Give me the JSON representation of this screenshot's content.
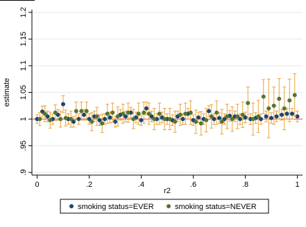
{
  "chart_data": {
    "type": "scatter",
    "xlabel": "r2",
    "ylabel": "estimate",
    "xlim": [
      -0.02,
      1.02
    ],
    "ylim": [
      0.895,
      1.205
    ],
    "x_ticks": [
      0,
      0.2,
      0.4,
      0.6,
      0.8,
      1
    ],
    "x_tick_labels": [
      "0",
      ".2",
      ".4",
      ".6",
      ".8",
      "1"
    ],
    "y_ticks": [
      0.9,
      0.95,
      1,
      1.05,
      1.1,
      1.15,
      1.2
    ],
    "y_tick_labels": [
      ".9",
      ".95",
      "1",
      "1.05",
      "1.1",
      "1.15",
      "1.2"
    ],
    "reference_line": 1,
    "grid": "horizontal",
    "legend_position": "bottom",
    "colors": {
      "ever": "#1a476f",
      "never": "#55752f",
      "error_bars": "#e8a33a",
      "reference": "#e05555",
      "grid": "#e3e8ec"
    },
    "series": [
      {
        "name": "smoking status=EVER",
        "color": "#1a476f",
        "x": [
          0,
          0.02,
          0.04,
          0.06,
          0.08,
          0.1,
          0.12,
          0.14,
          0.16,
          0.18,
          0.2,
          0.22,
          0.24,
          0.26,
          0.28,
          0.3,
          0.32,
          0.34,
          0.36,
          0.38,
          0.4,
          0.42,
          0.44,
          0.46,
          0.48,
          0.5,
          0.52,
          0.54,
          0.56,
          0.58,
          0.6,
          0.62,
          0.64,
          0.66,
          0.68,
          0.7,
          0.72,
          0.74,
          0.76,
          0.78,
          0.8,
          0.82,
          0.84,
          0.86,
          0.88,
          0.9,
          0.92,
          0.94,
          0.96,
          0.98,
          1
        ],
        "y": [
          1.0,
          1.014,
          1.005,
          1.0,
          1.008,
          1.028,
          1.0,
          0.995,
          1.0,
          1.008,
          1.0,
          1.005,
          0.998,
          1.0,
          1.003,
          0.995,
          1.008,
          1.005,
          1.012,
          1.003,
          0.998,
          1.02,
          1.005,
          1.0,
          1.003,
          1.0,
          0.998,
          1.005,
          1.0,
          1.01,
          0.998,
          1.003,
          1.0,
          1.015,
          1.0,
          1.002,
          1.0,
          1.006,
          1.005,
          1.0,
          1.003,
          1.0,
          1.002,
          1.0,
          1.005,
          1.002,
          1.005,
          1.008,
          1.01,
          1.01,
          1.005
        ],
        "ci_low": [
          0.992,
          1.004,
          0.995,
          0.99,
          0.998,
          1.012,
          0.99,
          0.985,
          0.99,
          0.998,
          0.99,
          0.995,
          0.988,
          0.99,
          0.993,
          0.985,
          0.998,
          0.995,
          1.002,
          0.993,
          0.988,
          1.008,
          0.995,
          0.99,
          0.993,
          0.99,
          0.988,
          0.995,
          0.99,
          1.0,
          0.988,
          0.993,
          0.99,
          1.005,
          0.99,
          0.992,
          0.99,
          0.996,
          0.995,
          0.99,
          0.993,
          0.99,
          0.992,
          0.99,
          0.995,
          0.992,
          0.995,
          0.998,
          1.0,
          1.0,
          0.995
        ],
        "ci_high": [
          1.008,
          1.024,
          1.015,
          1.01,
          1.018,
          1.044,
          1.01,
          1.005,
          1.01,
          1.018,
          1.01,
          1.015,
          1.008,
          1.01,
          1.013,
          1.005,
          1.018,
          1.015,
          1.022,
          1.013,
          1.008,
          1.032,
          1.015,
          1.01,
          1.013,
          1.01,
          1.008,
          1.015,
          1.01,
          1.02,
          1.008,
          1.013,
          1.01,
          1.025,
          1.01,
          1.012,
          1.01,
          1.016,
          1.015,
          1.01,
          1.013,
          1.01,
          1.012,
          1.01,
          1.015,
          1.012,
          1.015,
          1.018,
          1.02,
          1.02,
          1.015
        ]
      },
      {
        "name": "smoking status=NEVER",
        "color": "#55752f",
        "x": [
          0.01,
          0.03,
          0.05,
          0.07,
          0.09,
          0.11,
          0.13,
          0.15,
          0.17,
          0.19,
          0.21,
          0.23,
          0.25,
          0.27,
          0.29,
          0.31,
          0.33,
          0.35,
          0.37,
          0.39,
          0.41,
          0.43,
          0.45,
          0.47,
          0.49,
          0.51,
          0.53,
          0.55,
          0.57,
          0.59,
          0.61,
          0.63,
          0.65,
          0.67,
          0.69,
          0.71,
          0.73,
          0.75,
          0.77,
          0.79,
          0.81,
          0.83,
          0.85,
          0.87,
          0.89,
          0.91,
          0.93,
          0.95,
          0.97,
          0.99
        ],
        "y": [
          1.0,
          1.01,
          0.998,
          1.012,
          1.0,
          1.002,
          1.0,
          1.015,
          1.015,
          1.015,
          0.995,
          1.005,
          0.992,
          1.01,
          1.012,
          1.005,
          1.01,
          1.012,
          1.0,
          1.01,
          1.012,
          1.01,
          1.0,
          1.01,
          1.0,
          1.0,
          0.995,
          1.008,
          1.01,
          1.012,
          0.995,
          0.992,
          0.998,
          1.005,
          1.012,
          0.995,
          1.005,
          1.0,
          1.005,
          1.008,
          1.03,
          1.0,
          1.005,
          1.042,
          1.02,
          1.025,
          1.038,
          1.02,
          1.035,
          1.045
        ],
        "ci_low": [
          0.988,
          0.995,
          0.983,
          0.997,
          0.985,
          0.987,
          0.985,
          0.998,
          0.998,
          0.998,
          0.978,
          0.988,
          0.975,
          0.992,
          0.994,
          0.987,
          0.992,
          0.994,
          0.982,
          0.99,
          0.992,
          0.99,
          0.98,
          0.99,
          0.98,
          0.98,
          0.975,
          0.988,
          0.99,
          0.99,
          0.973,
          0.97,
          0.976,
          0.983,
          0.99,
          0.972,
          0.982,
          0.977,
          0.982,
          0.984,
          1.0,
          0.97,
          0.975,
          1.01,
          0.965,
          0.99,
          1.0,
          0.98,
          0.995,
          1.005
        ],
        "ci_high": [
          1.012,
          1.025,
          1.013,
          1.027,
          1.015,
          1.017,
          1.015,
          1.032,
          1.032,
          1.032,
          1.012,
          1.022,
          1.009,
          1.028,
          1.03,
          1.023,
          1.028,
          1.03,
          1.018,
          1.03,
          1.032,
          1.03,
          1.02,
          1.03,
          1.02,
          1.02,
          1.015,
          1.028,
          1.03,
          1.034,
          1.017,
          1.014,
          1.02,
          1.027,
          1.034,
          1.018,
          1.028,
          1.023,
          1.028,
          1.032,
          1.06,
          1.03,
          1.035,
          1.074,
          1.075,
          1.06,
          1.076,
          1.06,
          1.075,
          1.085
        ]
      }
    ]
  }
}
